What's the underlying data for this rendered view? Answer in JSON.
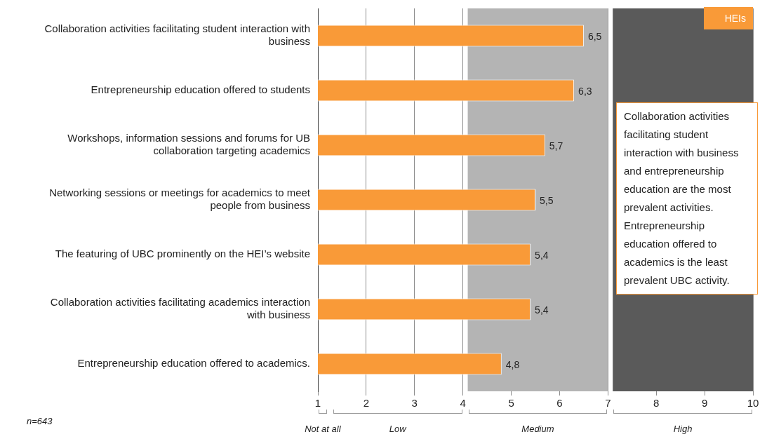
{
  "chart_data": {
    "type": "bar",
    "orientation": "horizontal",
    "categories": [
      "Collaboration activities facilitating student interaction with business",
      "Entrepreneurship education offered to students",
      "Workshops, information sessions and forums for UB collaboration targeting academics",
      "Networking sessions or meetings for academics to meet people from business",
      "The featuring of UBC prominently on the HEI’s website",
      "Collaboration activities facilitating academics interaction with business",
      "Entrepreneurship education offered to academics."
    ],
    "series": [
      {
        "name": "HEIs",
        "color": "#f99a38",
        "values": [
          6.5,
          6.3,
          5.7,
          5.5,
          5.4,
          5.4,
          4.8
        ],
        "value_labels": [
          "6,5",
          "6,3",
          "5,7",
          "5,5",
          "5,4",
          "5,4",
          "4,8"
        ]
      }
    ],
    "xlim": [
      1,
      10
    ],
    "xticks": [
      1,
      2,
      3,
      4,
      5,
      6,
      7,
      8,
      9,
      10
    ],
    "grid": "x",
    "legend": "top right",
    "bands": [
      {
        "axis": "x",
        "from": 4.1,
        "to": 7,
        "color": "#b4b4b4"
      },
      {
        "axis": "x",
        "from": 7.1,
        "to": 10,
        "color": "#5a5a5a"
      }
    ],
    "annotations": [
      "n=643",
      "Not at all",
      "Low",
      "Medium",
      "High",
      "Collaboration activities facilitating student interaction with business and entrepreneurship education are the most prevalent activities. Entrepreneurship education offered to academics is the least prevalent UBC activity."
    ]
  }
}
